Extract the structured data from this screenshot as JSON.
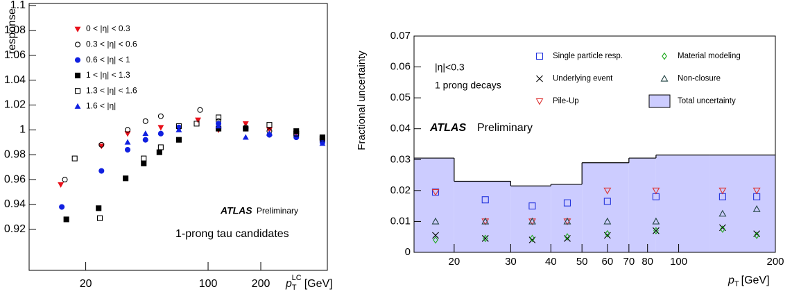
{
  "chart_data": [
    {
      "type": "scatter",
      "x_scale": "log",
      "y_label": "response",
      "x_label": {
        "symbol": "p",
        "sub": "T",
        "sup": "LC",
        "unit": "[GeV]"
      },
      "xlim": [
        9.5,
        480
      ],
      "ylim": [
        0.887,
        1.1
      ],
      "xticks": [
        20,
        100,
        200
      ],
      "yticks": [
        0.92,
        0.94,
        0.96,
        0.98,
        1,
        1.02,
        1.04,
        1.06,
        1.08,
        1.1
      ],
      "series": [
        {
          "name": "0 < |η| < 0.3",
          "color": "#e8101a",
          "marker": "triangle-down",
          "x": [
            14.4,
            24.6,
            34.7,
            53.7,
            87.6,
            114.7,
            164,
            224,
            319,
            450
          ],
          "values": [
            0.956,
            0.987,
            0.997,
            1.002,
            1.008,
            1.0,
            1.005,
            1.0,
            0.997,
            0.991
          ]
        },
        {
          "name": "0.3 < |η| < 0.6",
          "color": "#000000",
          "marker": "circle-open",
          "x": [
            15.2,
            24.6,
            34.7,
            43.9,
            53.7,
            90,
            114.7,
            164,
            224,
            319,
            450
          ],
          "values": [
            0.96,
            0.988,
            1.0,
            1.007,
            1.011,
            1.016,
            1.007,
            1.002,
            0.999,
            0.997,
            0.991
          ]
        },
        {
          "name": "0.6 < |η| < 1",
          "color": "#1020e0",
          "marker": "circle",
          "x": [
            14.6,
            24.6,
            34.7,
            43.9,
            53.7,
            68.1,
            114.7,
            164,
            224,
            319,
            450
          ],
          "values": [
            0.938,
            0.967,
            0.984,
            0.992,
            0.997,
            1.002,
            1.005,
            1.001,
            0.996,
            0.994,
            0.99
          ]
        },
        {
          "name": "1 < |η| < 1.3",
          "color": "#000000",
          "marker": "square",
          "x": [
            15.5,
            23.7,
            33.8,
            42.9,
            52.7,
            68.1,
            114.7,
            164,
            319,
            450
          ],
          "values": [
            0.928,
            0.937,
            0.961,
            0.973,
            0.982,
            0.992,
            1.001,
            1.001,
            0.999,
            0.994
          ]
        },
        {
          "name": "1.3 < |η| < 1.6",
          "color": "#000000",
          "marker": "square-open",
          "x": [
            17.3,
            24.1,
            42.9,
            53.7,
            68.1,
            86,
            114.7,
            224,
            319,
            450
          ],
          "values": [
            0.977,
            0.929,
            0.977,
            0.986,
            1.003,
            1.005,
            1.01,
            1.004,
            0.997,
            0.993
          ]
        },
        {
          "name": "1.6 < |η|",
          "color": "#1020e0",
          "marker": "triangle-up",
          "x": [
            34.7,
            43.9,
            68.1,
            114.7,
            164,
            224,
            450
          ],
          "values": [
            0.99,
            0.997,
            1.0,
            1.003,
            0.994,
            0.997,
            0.989
          ]
        }
      ],
      "annotations": {
        "experiment": "ATLAS",
        "status": "Preliminary",
        "selection": "1-prong tau candidates"
      }
    },
    {
      "type": "scatter",
      "x_scale": "log",
      "y_label": "Fractional uncertainty",
      "x_label": {
        "symbol": "p",
        "sub": "T",
        "unit": "[GeV]"
      },
      "xlim": [
        15,
        200
      ],
      "ylim": [
        0,
        0.07
      ],
      "xticks": [
        20,
        30,
        40,
        50,
        60,
        70,
        80,
        100,
        200
      ],
      "yticks": [
        0,
        0.01,
        0.02,
        0.03,
        0.04,
        0.05,
        0.06,
        0.07
      ],
      "total": {
        "name": "Total uncertainty",
        "color": "#ccccff",
        "bins": [
          15,
          20,
          30,
          40,
          50,
          70,
          85,
          125,
          200
        ],
        "values": [
          0.0305,
          0.023,
          0.0215,
          0.022,
          0.029,
          0.0305,
          0.0315,
          0.0315
        ]
      },
      "series": [
        {
          "name": "Single particle resp.",
          "color": "#2233dd",
          "marker": "square-open",
          "x": [
            17.5,
            25,
            35,
            45,
            60,
            85,
            137,
            175
          ],
          "values": [
            0.0195,
            0.017,
            0.015,
            0.016,
            0.0165,
            0.018,
            0.018,
            0.018
          ]
        },
        {
          "name": "Underlying event",
          "color": "#000000",
          "marker": "x",
          "x": [
            17.5,
            25,
            35,
            45,
            60,
            85,
            137,
            175
          ],
          "values": [
            0.0055,
            0.0045,
            0.004,
            0.0045,
            0.0055,
            0.007,
            0.008,
            0.006
          ]
        },
        {
          "name": "Pile-Up",
          "color": "#dd3333",
          "marker": "triangle-down-open",
          "x": [
            17.5,
            25,
            35,
            45,
            60,
            85,
            137,
            175
          ],
          "values": [
            0.0195,
            0.01,
            0.01,
            0.01,
            0.02,
            0.02,
            0.02,
            0.02
          ]
        },
        {
          "name": "Material modeling",
          "color": "#22aa22",
          "marker": "diamond-open",
          "x": [
            17.5,
            25,
            35,
            45,
            60,
            85,
            137,
            175
          ],
          "values": [
            0.004,
            0.0045,
            0.0045,
            0.005,
            0.006,
            0.007,
            0.0075,
            0.0055
          ]
        },
        {
          "name": "Non-closure",
          "color": "#224444",
          "marker": "triangle-up-open",
          "x": [
            17.5,
            25,
            35,
            45,
            60,
            85,
            137,
            175
          ],
          "values": [
            0.01,
            0.01,
            0.01,
            0.01,
            0.01,
            0.01,
            0.0125,
            0.014
          ]
        }
      ],
      "annotations": {
        "eta_cut": "|η|<0.3",
        "decay": "1 prong decays",
        "experiment": "ATLAS",
        "status": "Preliminary"
      }
    }
  ]
}
